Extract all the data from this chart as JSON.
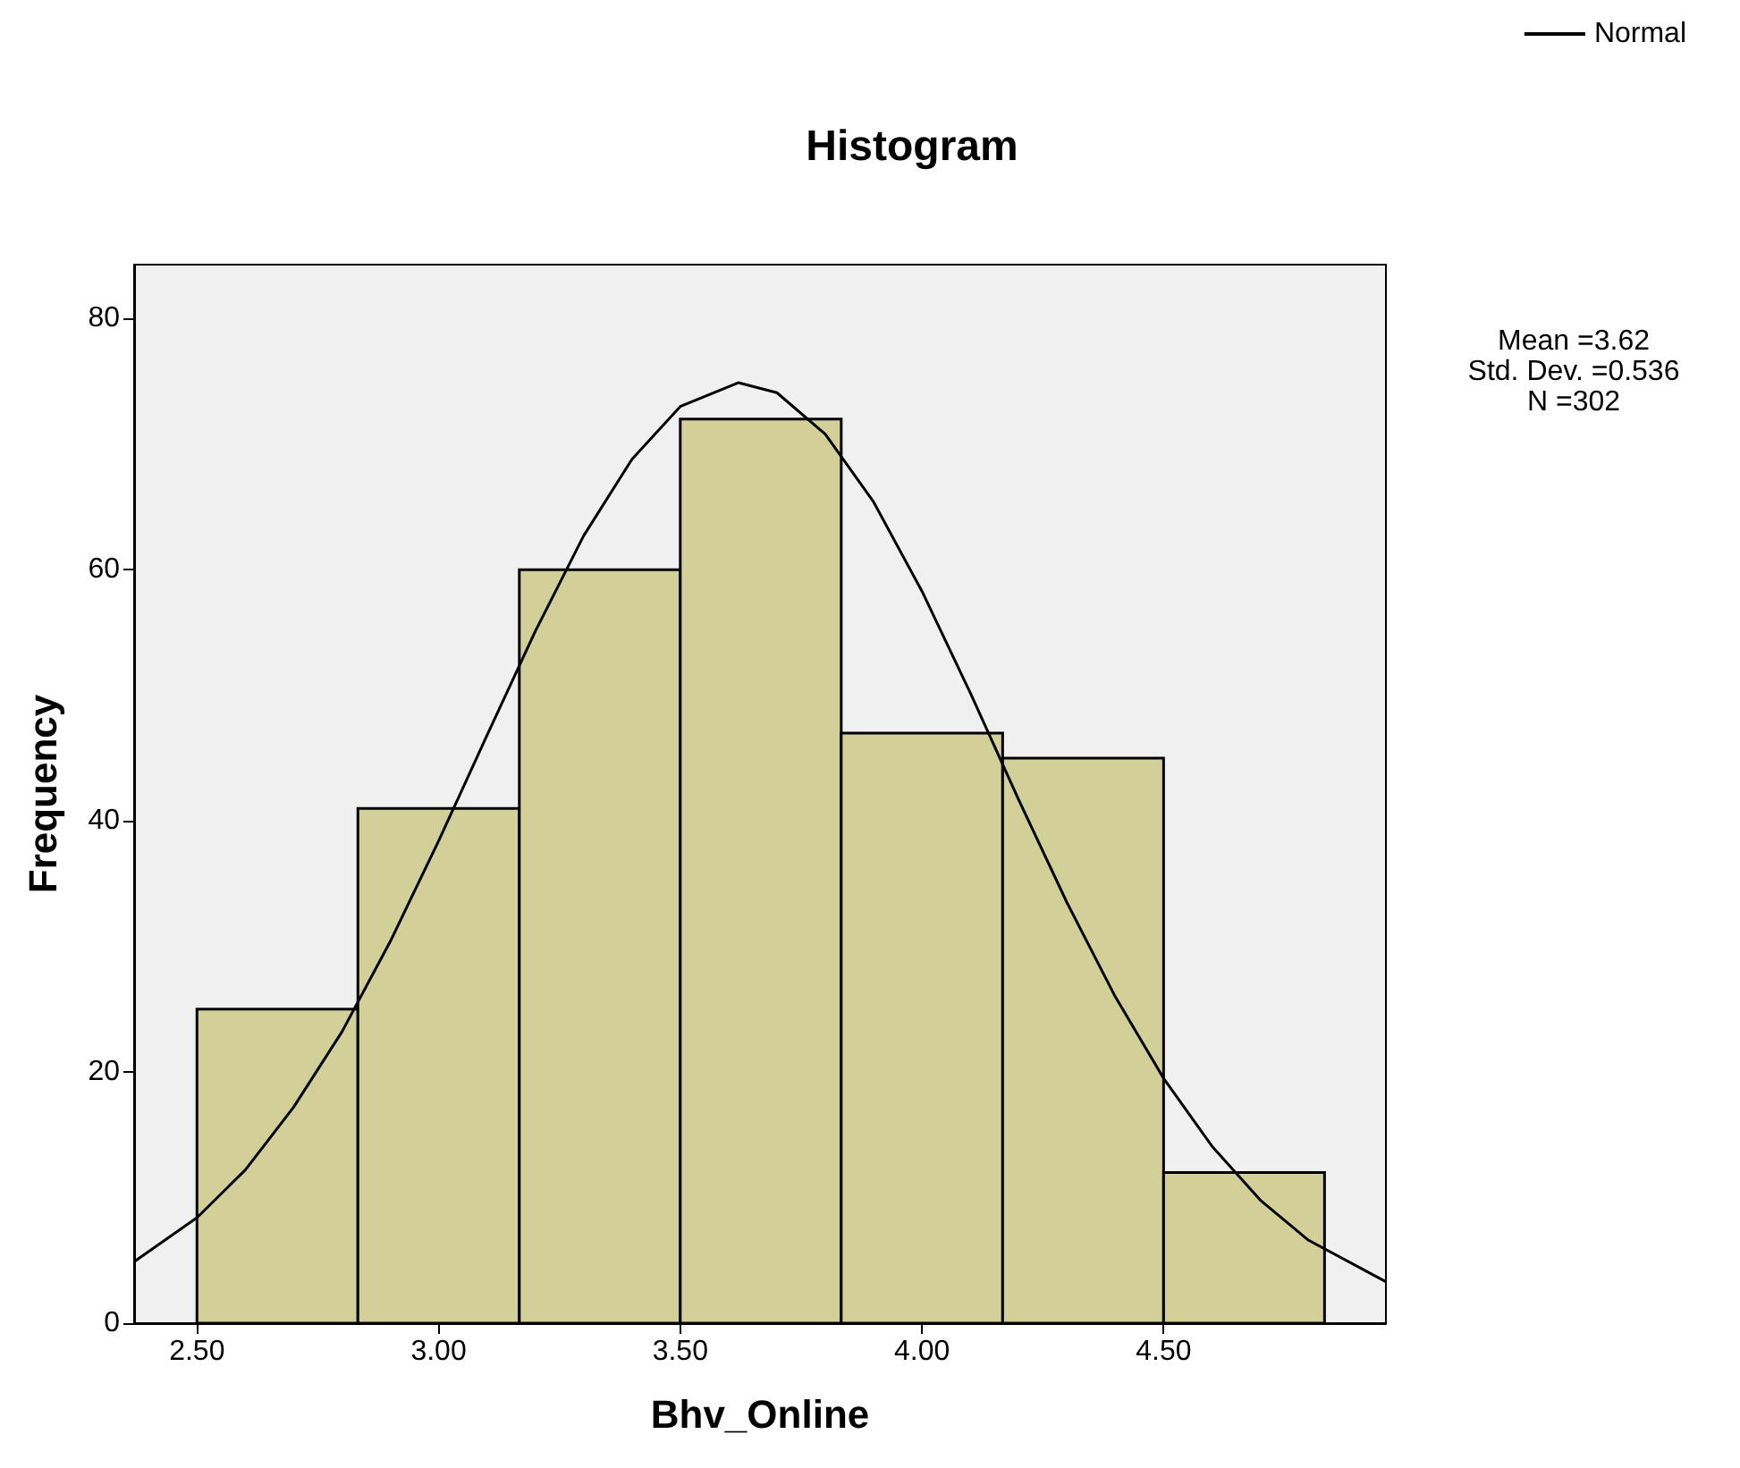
{
  "chart_data": {
    "type": "histogram",
    "title": "Histogram",
    "xlabel": "Bhv_Online",
    "ylabel": "Frequency",
    "bins": [
      2.5,
      2.833,
      3.167,
      3.5,
      3.833,
      4.167,
      4.5,
      4.833
    ],
    "values": [
      25,
      41,
      60,
      72,
      47,
      45,
      12
    ],
    "color": "#d3cf98",
    "series": [
      {
        "name": "Normal",
        "type": "line",
        "color": "#000000",
        "x": [
          2.37,
          2.5,
          2.6,
          2.7,
          2.8,
          2.9,
          3.0,
          3.1,
          3.2,
          3.3,
          3.4,
          3.5,
          3.62,
          3.7,
          3.8,
          3.9,
          4.0,
          4.1,
          4.2,
          4.3,
          4.4,
          4.5,
          4.6,
          4.7,
          4.8,
          4.96
        ],
        "values": [
          4.9,
          8.4,
          12.2,
          17.2,
          23.2,
          30.4,
          38.4,
          46.8,
          55.1,
          62.7,
          68.8,
          73.0,
          74.9,
          74.1,
          70.8,
          65.4,
          58.3,
          50.2,
          41.7,
          33.5,
          26.0,
          19.5,
          14.1,
          9.8,
          6.6,
          3.3
        ]
      }
    ],
    "xlim": [
      2.37,
      4.96
    ],
    "ylim": [
      0,
      84.3
    ],
    "xticks": [
      {
        "value": 2.5,
        "label": "2.50"
      },
      {
        "value": 3.0,
        "label": "3.00"
      },
      {
        "value": 3.5,
        "label": "3.50"
      },
      {
        "value": 4.0,
        "label": "4.00"
      },
      {
        "value": 4.5,
        "label": "4.50"
      }
    ],
    "yticks": [
      0,
      20,
      40,
      60,
      80
    ],
    "legend": "top right",
    "annotations": [
      "Mean =3.62",
      "Std. Dev. =0.536",
      "N =302"
    ]
  }
}
